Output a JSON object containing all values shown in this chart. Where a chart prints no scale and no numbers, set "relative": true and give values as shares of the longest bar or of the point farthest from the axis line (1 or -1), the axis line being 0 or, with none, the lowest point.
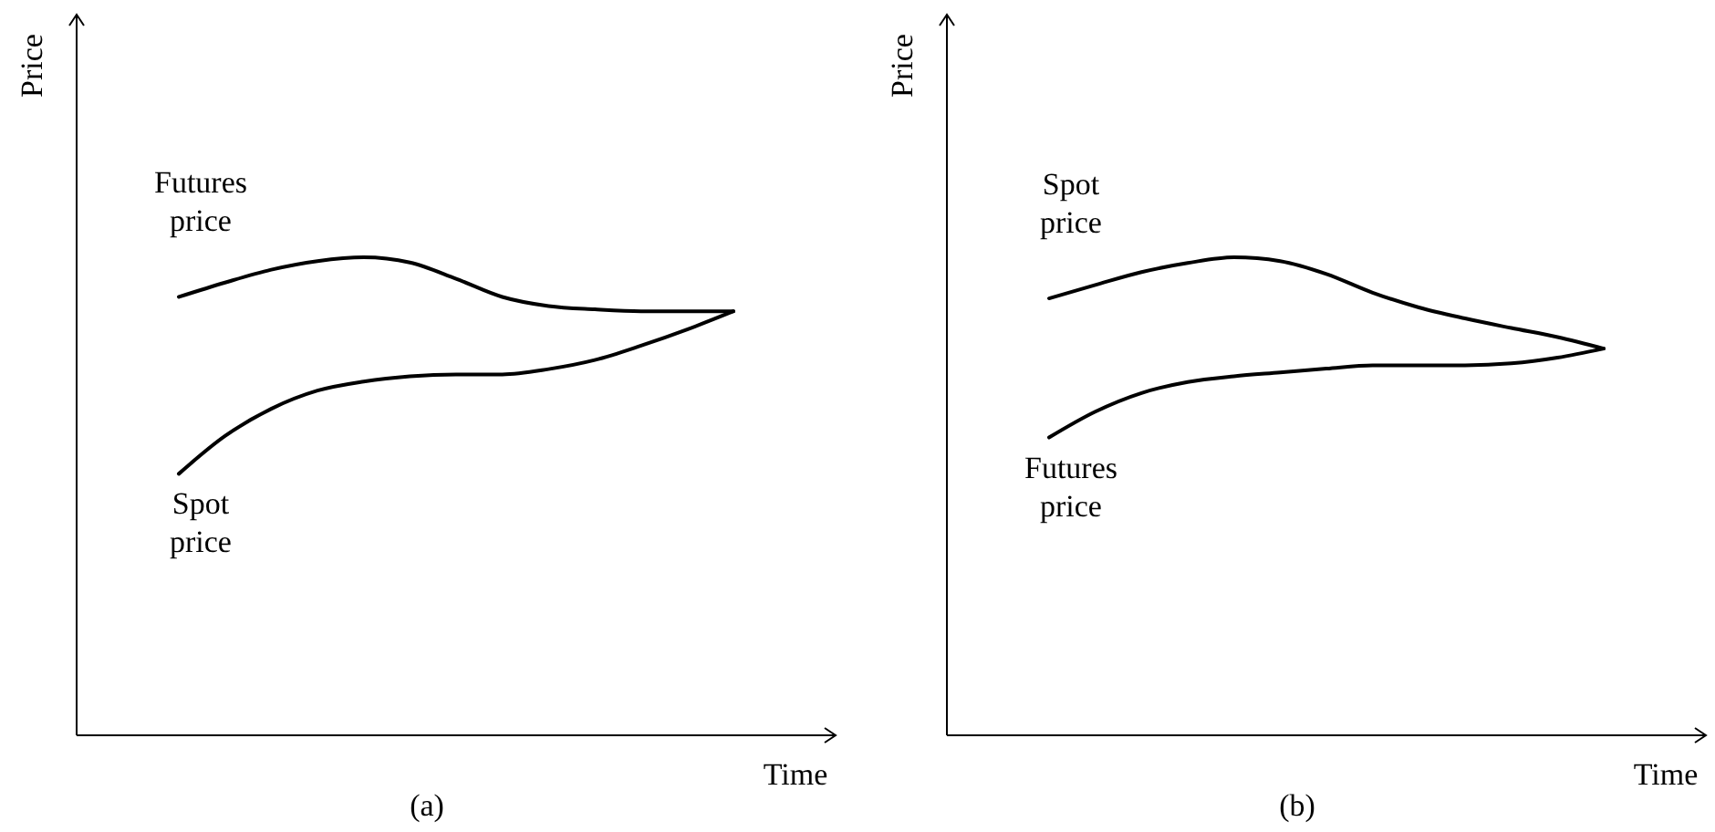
{
  "chart_data": [
    {
      "type": "line",
      "title": "(a)",
      "xlabel": "Time",
      "ylabel": "Price",
      "relative": true,
      "categories": [
        null,
        null,
        null,
        null,
        null,
        null,
        null,
        null,
        null,
        null,
        null,
        null,
        null
      ],
      "series": [
        {
          "name": "Futures price",
          "color": "#000000",
          "values": [
            0.917,
            0.947,
            0.974,
            0.992,
            1,
            0.989,
            0.955,
            0.917,
            0.898,
            0.891,
            0.887,
            0.887,
            0.887
          ]
        },
        {
          "name": "Spot price",
          "color": "#000000",
          "values": [
            0.547,
            0.626,
            0.683,
            0.721,
            0.74,
            0.751,
            0.755,
            0.755,
            0.766,
            0.785,
            0.815,
            0.849,
            0.887
          ]
        }
      ]
    },
    {
      "type": "line",
      "title": "(b)",
      "xlabel": "Time",
      "ylabel": "Price",
      "relative": true,
      "categories": [
        null,
        null,
        null,
        null,
        null,
        null,
        null,
        null,
        null,
        null,
        null,
        null,
        null
      ],
      "series": [
        {
          "name": "Spot price",
          "color": "#000000",
          "values": [
            0.914,
            0.942,
            0.969,
            0.988,
            1,
            0.992,
            0.965,
            0.926,
            0.895,
            0.872,
            0.852,
            0.833,
            0.809
          ]
        },
        {
          "name": "Futures price",
          "color": "#000000",
          "values": [
            0.623,
            0.677,
            0.716,
            0.739,
            0.751,
            0.759,
            0.767,
            0.774,
            0.774,
            0.774,
            0.778,
            0.79,
            0.809
          ]
        }
      ]
    }
  ]
}
